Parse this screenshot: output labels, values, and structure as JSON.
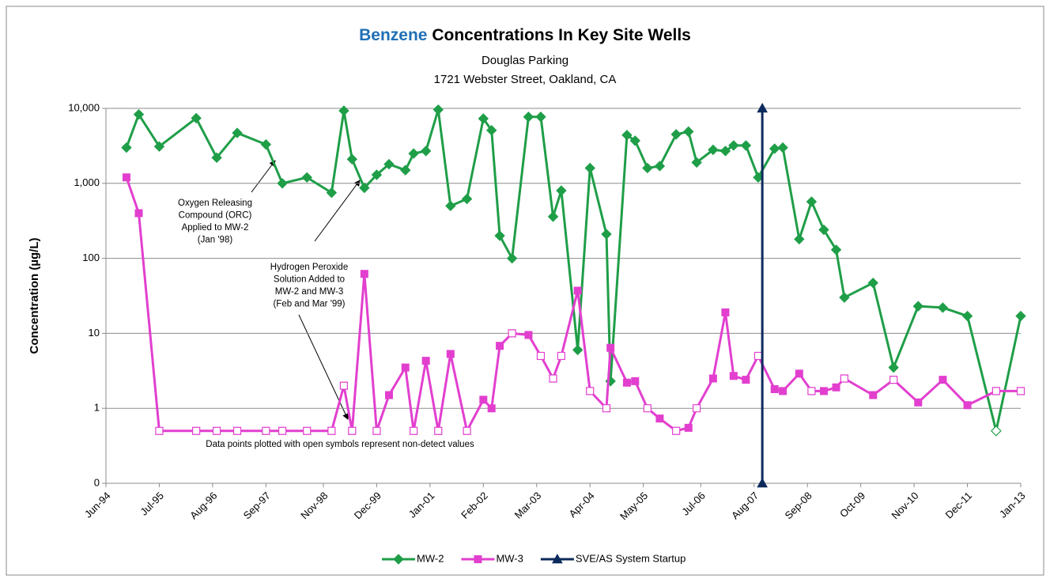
{
  "chart_data": {
    "type": "line",
    "title_highlight": "Benzene",
    "title": "Concentrations In Key Site Wells",
    "subtitle": [
      "Douglas Parking",
      "1721 Webster Street, Oakland, CA"
    ],
    "ylabel": "Concentration (µg/L)",
    "log_scale": true,
    "grid": true,
    "legend": "bottom",
    "ylim": [
      0.1,
      10000
    ],
    "yticks": [
      {
        "value": 0.1,
        "label": "0"
      },
      1,
      10,
      100,
      {
        "value": 1000,
        "label": "1,000"
      },
      {
        "value": 10000,
        "label": "10,000"
      }
    ],
    "xlim": [
      "1994-06",
      "2013-01"
    ],
    "xticks": [
      {
        "value": "1994-06",
        "label": "Jun-94"
      },
      {
        "value": "1995-07",
        "label": "Jul-95"
      },
      {
        "value": "1996-08",
        "label": "Aug-96"
      },
      {
        "value": "1997-09",
        "label": "Sep-97"
      },
      {
        "value": "1998-11",
        "label": "Nov-98"
      },
      {
        "value": "1999-12",
        "label": "Dec-99"
      },
      {
        "value": "2001-01",
        "label": "Jan-01"
      },
      {
        "value": "2002-02",
        "label": "Feb-02"
      },
      {
        "value": "2003-03",
        "label": "Mar-03"
      },
      {
        "value": "2004-04",
        "label": "Apr-04"
      },
      {
        "value": "2005-05",
        "label": "May-05"
      },
      {
        "value": "2006-07",
        "label": "Jul-06"
      },
      {
        "value": "2007-08",
        "label": "Aug-07"
      },
      {
        "value": "2008-09",
        "label": "Sep-08"
      },
      {
        "value": "2009-10",
        "label": "Oct-09"
      },
      {
        "value": "2010-11",
        "label": "Nov-10"
      },
      {
        "value": "2011-12",
        "label": "Dec-11"
      },
      {
        "value": "2013-01",
        "label": "Jan-13"
      }
    ],
    "x": [
      "1994-11",
      "1995-02",
      "1995-07",
      "1996-04",
      "1996-09",
      "1997-02",
      "1997-09",
      "1998-01",
      "1998-07",
      "1999-01",
      "1999-04",
      "1999-06",
      "1999-09",
      "1999-12",
      "2000-03",
      "2000-07",
      "2000-09",
      "2000-12",
      "2001-03",
      "2001-06",
      "2001-10",
      "2002-02",
      "2002-04",
      "2002-06",
      "2002-09",
      "2003-01",
      "2003-04",
      "2003-07",
      "2003-09",
      "2004-01",
      "2004-04",
      "2004-08",
      "2004-09",
      "2005-01",
      "2005-03",
      "2005-06",
      "2005-09",
      "2006-01",
      "2006-04",
      "2006-06",
      "2006-10",
      "2007-01",
      "2007-03",
      "2007-06",
      "2007-09",
      "2008-01",
      "2008-03",
      "2008-07",
      "2008-10",
      "2009-01",
      "2009-04",
      "2009-06",
      "2010-01",
      "2010-06",
      "2010-12",
      "2011-06",
      "2011-12",
      "2012-07",
      "2013-01"
    ],
    "series": [
      {
        "name": "MW-2",
        "color": "#1f9e48",
        "marker": "diamond",
        "values": [
          3000,
          8300,
          3100,
          7400,
          2200,
          4700,
          3300,
          1000,
          1200,
          750,
          9300,
          2100,
          870,
          1300,
          1800,
          1500,
          2500,
          2700,
          9600,
          500,
          620,
          7300,
          5100,
          200,
          100,
          7700,
          7700,
          360,
          800,
          6,
          1600,
          210,
          2.3,
          4400,
          3700,
          1600,
          1700,
          4500,
          4900,
          1900,
          2800,
          2700,
          3200,
          3200,
          1200,
          2900,
          3000,
          180,
          570,
          240,
          130,
          30,
          47,
          3.5,
          23,
          22,
          17,
          0.5,
          17
        ],
        "open": [
          false,
          false,
          false,
          false,
          false,
          false,
          false,
          false,
          false,
          false,
          false,
          false,
          false,
          false,
          false,
          false,
          false,
          false,
          false,
          false,
          false,
          false,
          false,
          false,
          false,
          false,
          false,
          false,
          false,
          false,
          false,
          false,
          false,
          false,
          false,
          false,
          false,
          false,
          false,
          false,
          false,
          false,
          false,
          false,
          false,
          false,
          false,
          false,
          false,
          false,
          false,
          false,
          false,
          false,
          false,
          false,
          false,
          true,
          false
        ]
      },
      {
        "name": "MW-3",
        "color": "#e23fcf",
        "marker": "square",
        "values": [
          1200,
          400,
          0.5,
          0.5,
          0.5,
          0.5,
          0.5,
          0.5,
          0.5,
          0.5,
          2,
          0.5,
          62,
          0.5,
          1.5,
          3.5,
          0.5,
          4.3,
          0.5,
          5.3,
          0.5,
          1.3,
          1,
          6.8,
          10,
          9.5,
          5,
          2.5,
          5,
          37,
          1.7,
          1,
          6.4,
          2.2,
          2.3,
          1,
          0.73,
          0.5,
          0.55,
          1,
          2.5,
          19,
          2.7,
          2.4,
          5,
          1.8,
          1.7,
          2.9,
          1.7,
          1.7,
          1.9,
          2.5,
          1.5,
          2.4,
          1.2,
          2.4,
          1.1,
          1.7,
          1.7
        ],
        "open": [
          false,
          false,
          true,
          true,
          true,
          true,
          true,
          true,
          true,
          true,
          true,
          true,
          false,
          true,
          false,
          false,
          true,
          false,
          true,
          false,
          true,
          false,
          false,
          false,
          true,
          false,
          true,
          true,
          true,
          false,
          true,
          true,
          false,
          false,
          false,
          true,
          false,
          true,
          false,
          true,
          false,
          false,
          false,
          false,
          true,
          false,
          false,
          false,
          true,
          false,
          false,
          true,
          false,
          true,
          false,
          false,
          false,
          true,
          true
        ]
      },
      {
        "name": "SVE/AS System Startup",
        "color": "#0d2a5c",
        "marker": "triangle",
        "x": [
          "2007-10",
          "2007-10"
        ],
        "values": [
          0.1,
          10000
        ],
        "open": [
          false,
          false
        ]
      }
    ],
    "annotations": [
      [
        "Oxygen Releasing",
        "Compound (ORC)",
        "Applied  to MW-2",
        "(Jan '98)"
      ],
      [
        "Hydrogen Peroxide",
        "Solution Added to",
        "MW-2 and MW-3",
        "(Feb and Mar '99)"
      ],
      [
        "Data points plotted with open symbols represent non-detect values"
      ]
    ]
  }
}
